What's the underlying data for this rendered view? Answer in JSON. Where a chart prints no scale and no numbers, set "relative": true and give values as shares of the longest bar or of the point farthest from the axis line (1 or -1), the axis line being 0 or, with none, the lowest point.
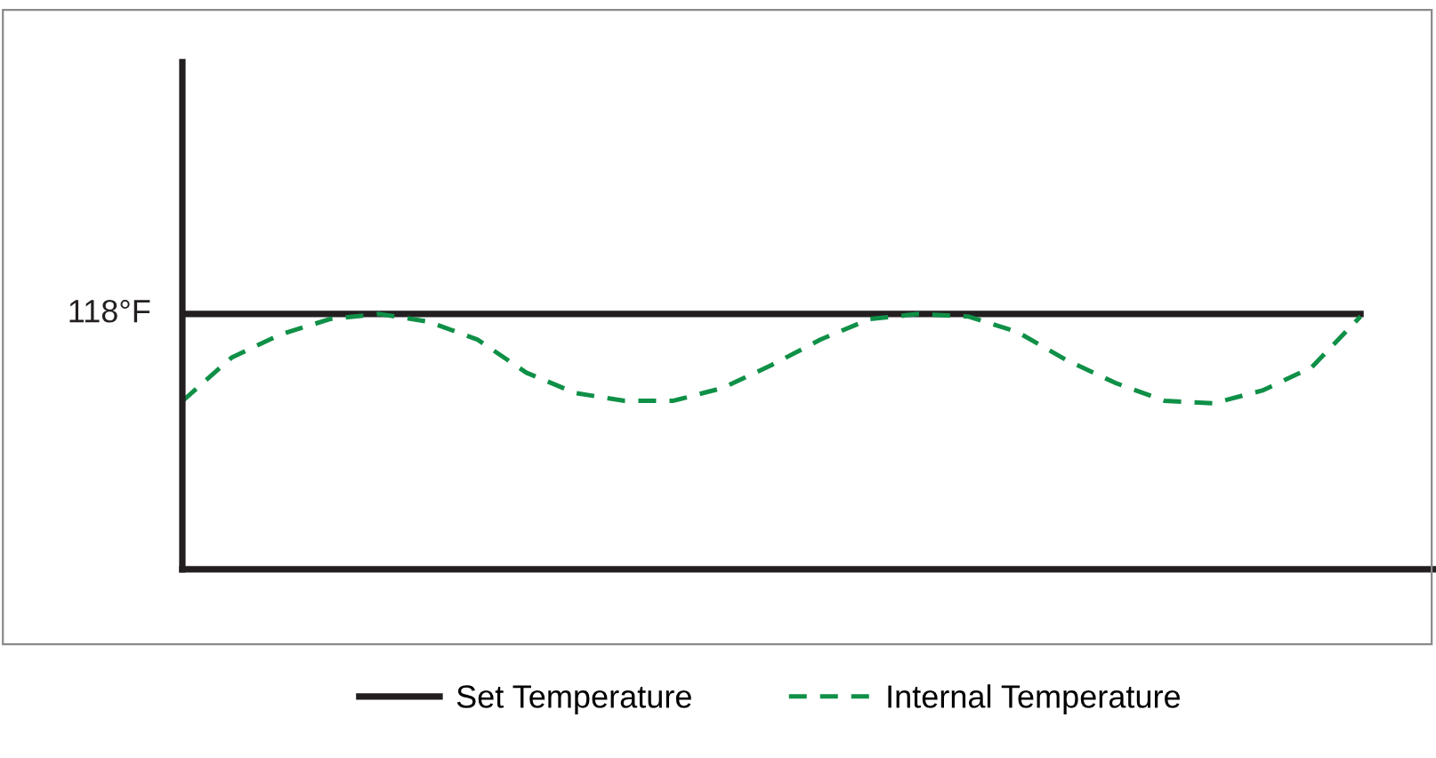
{
  "chart_data": {
    "type": "line",
    "relative": true,
    "categories": [
      null,
      null,
      null,
      null,
      null,
      null,
      null,
      null,
      null,
      null,
      null,
      null,
      null,
      null,
      null,
      null,
      null,
      null,
      null,
      null,
      null,
      null,
      null,
      null,
      null
    ],
    "series": [
      {
        "name": "Set Temperature",
        "color": "#231f20",
        "line_style": "solid",
        "values": [
          1,
          1,
          1,
          1,
          1,
          1,
          1,
          1,
          1,
          1,
          1,
          1,
          1,
          1,
          1,
          1,
          1,
          1,
          1,
          1,
          1,
          1,
          1,
          1,
          1
        ]
      },
      {
        "name": "Internal Temperature",
        "color": "#0f9047",
        "line_style": "dashed",
        "values": [
          0.66,
          0.83,
          0.92,
          0.98,
          1.0,
          0.97,
          0.9,
          0.77,
          0.69,
          0.66,
          0.66,
          0.71,
          0.8,
          0.9,
          0.98,
          1.0,
          0.99,
          0.93,
          0.82,
          0.73,
          0.66,
          0.65,
          0.7,
          0.79,
          0.99
        ]
      }
    ],
    "annotations": [
      "118°F"
    ],
    "legend": "bottom",
    "marker": "none"
  }
}
